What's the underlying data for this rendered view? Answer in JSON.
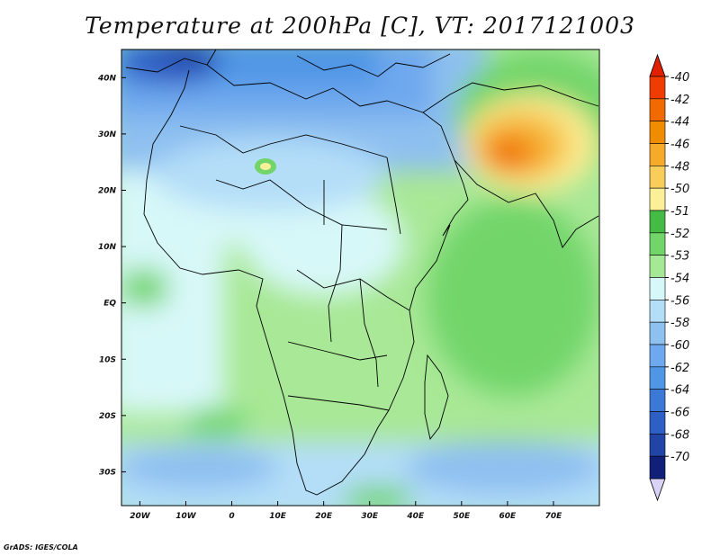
{
  "title": "Temperature at 200hPa [C], VT: 2017121003",
  "footer": "GrADS: IGES/COLA",
  "map": {
    "lon_range": [
      -24,
      80
    ],
    "lat_range": [
      -36,
      45
    ],
    "lon_ticks": [
      {
        "value": -20,
        "label": "20W"
      },
      {
        "value": -10,
        "label": "10W"
      },
      {
        "value": 0,
        "label": "0"
      },
      {
        "value": 10,
        "label": "10E"
      },
      {
        "value": 20,
        "label": "20E"
      },
      {
        "value": 30,
        "label": "30E"
      },
      {
        "value": 40,
        "label": "40E"
      },
      {
        "value": 50,
        "label": "50E"
      },
      {
        "value": 60,
        "label": "60E"
      },
      {
        "value": 70,
        "label": "70E"
      }
    ],
    "lat_ticks": [
      {
        "value": 40,
        "label": "40N"
      },
      {
        "value": 30,
        "label": "30N"
      },
      {
        "value": 20,
        "label": "20N"
      },
      {
        "value": 10,
        "label": "10N"
      },
      {
        "value": 0,
        "label": "EQ"
      },
      {
        "value": -10,
        "label": "10S"
      },
      {
        "value": -20,
        "label": "20S"
      },
      {
        "value": -30,
        "label": "30S"
      }
    ]
  },
  "colorbar": {
    "labels": [
      "-40",
      "-42",
      "-44",
      "-46",
      "-48",
      "-50",
      "-51",
      "-52",
      "-53",
      "-54",
      "-56",
      "-58",
      "-60",
      "-62",
      "-64",
      "-66",
      "-68",
      "-70"
    ],
    "colors": [
      "#f03c00",
      "#f06a00",
      "#f08c00",
      "#f5aa2a",
      "#f8cd5a",
      "#fbef98",
      "#44bb44",
      "#72d56a",
      "#a5e896",
      "#d7f8f8",
      "#b4def8",
      "#8ec0f0",
      "#6ea8ee",
      "#5096e6",
      "#3c78d6",
      "#2e5fc4",
      "#2244a6",
      "#102078"
    ],
    "top_arrow_color": "#e02000",
    "bottom_arrow_color": "#d8d2f6"
  }
}
